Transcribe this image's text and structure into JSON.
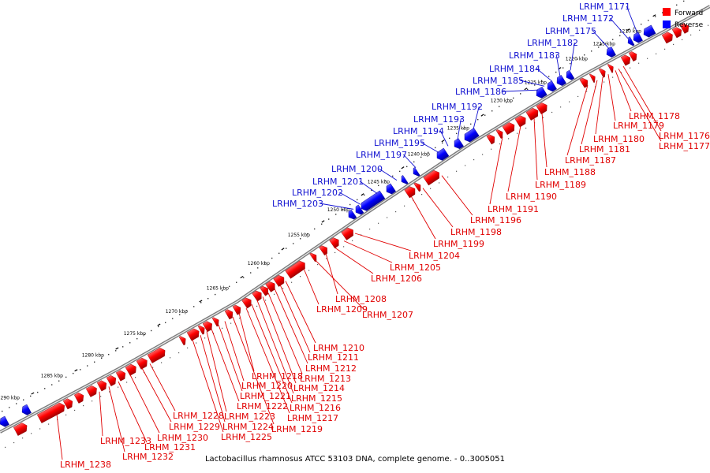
{
  "caption": "Lactobacillus rhamnosus ATCC 53103 DNA, complete genome. - 0..3005051",
  "legend": [
    {
      "label": "Forward",
      "color": "#ff0000"
    },
    {
      "label": "Reverse",
      "color": "#0000ff"
    }
  ],
  "colors": {
    "forward": "#ff0000",
    "reverse": "#0000ff",
    "forward_label": "#e00000",
    "reverse_label": "#1010d0",
    "backbone": "#808080"
  },
  "ticks": [
    "1210 kbp",
    "1215 kbp",
    "1220 kbp",
    "1225 kbp",
    "1230 kbp",
    "1235 kbp",
    "1240 kbp",
    "1245 kbp",
    "1250 kbp",
    "1255 kbp",
    "1260 kbp",
    "1265 kbp",
    "1270 kbp",
    "1275 kbp",
    "1280 kbp",
    "1285 kbp",
    "1290 kbp"
  ],
  "forward_genes": [
    "LRHM_1176",
    "LRHM_1177",
    "LRHM_1178",
    "LRHM_1179",
    "LRHM_1180",
    "LRHM_1181",
    "LRHM_1187",
    "LRHM_1188",
    "LRHM_1189",
    "LRHM_1190",
    "LRHM_1191",
    "LRHM_1196",
    "LRHM_1198",
    "LRHM_1199",
    "LRHM_1204",
    "LRHM_1205",
    "LRHM_1206",
    "LRHM_1207",
    "LRHM_1208",
    "LRHM_1209",
    "LRHM_1210",
    "LRHM_1211",
    "LRHM_1212",
    "LRHM_1213",
    "LRHM_1214",
    "LRHM_1215",
    "LRHM_1216",
    "LRHM_1217",
    "LRHM_1218",
    "LRHM_1219",
    "LRHM_1220",
    "LRHM_1221",
    "LRHM_1222",
    "LRHM_1223",
    "LRHM_1224",
    "LRHM_1225",
    "LRHM_1228",
    "LRHM_1229",
    "LRHM_1230",
    "LRHM_1231",
    "LRHM_1232",
    "LRHM_1233",
    "LRHM_1238"
  ],
  "reverse_genes": [
    "LRHM_1171",
    "LRHM_1172",
    "LRHM_1175",
    "LRHM_1182",
    "LRHM_1183",
    "LRHM_1184",
    "LRHM_1185",
    "LRHM_1186",
    "LRHM_1192",
    "LRHM_1193",
    "LRHM_1194",
    "LRHM_1195",
    "LRHM_1197",
    "LRHM_1200",
    "LRHM_1201",
    "LRHM_1202",
    "LRHM_1203"
  ]
}
